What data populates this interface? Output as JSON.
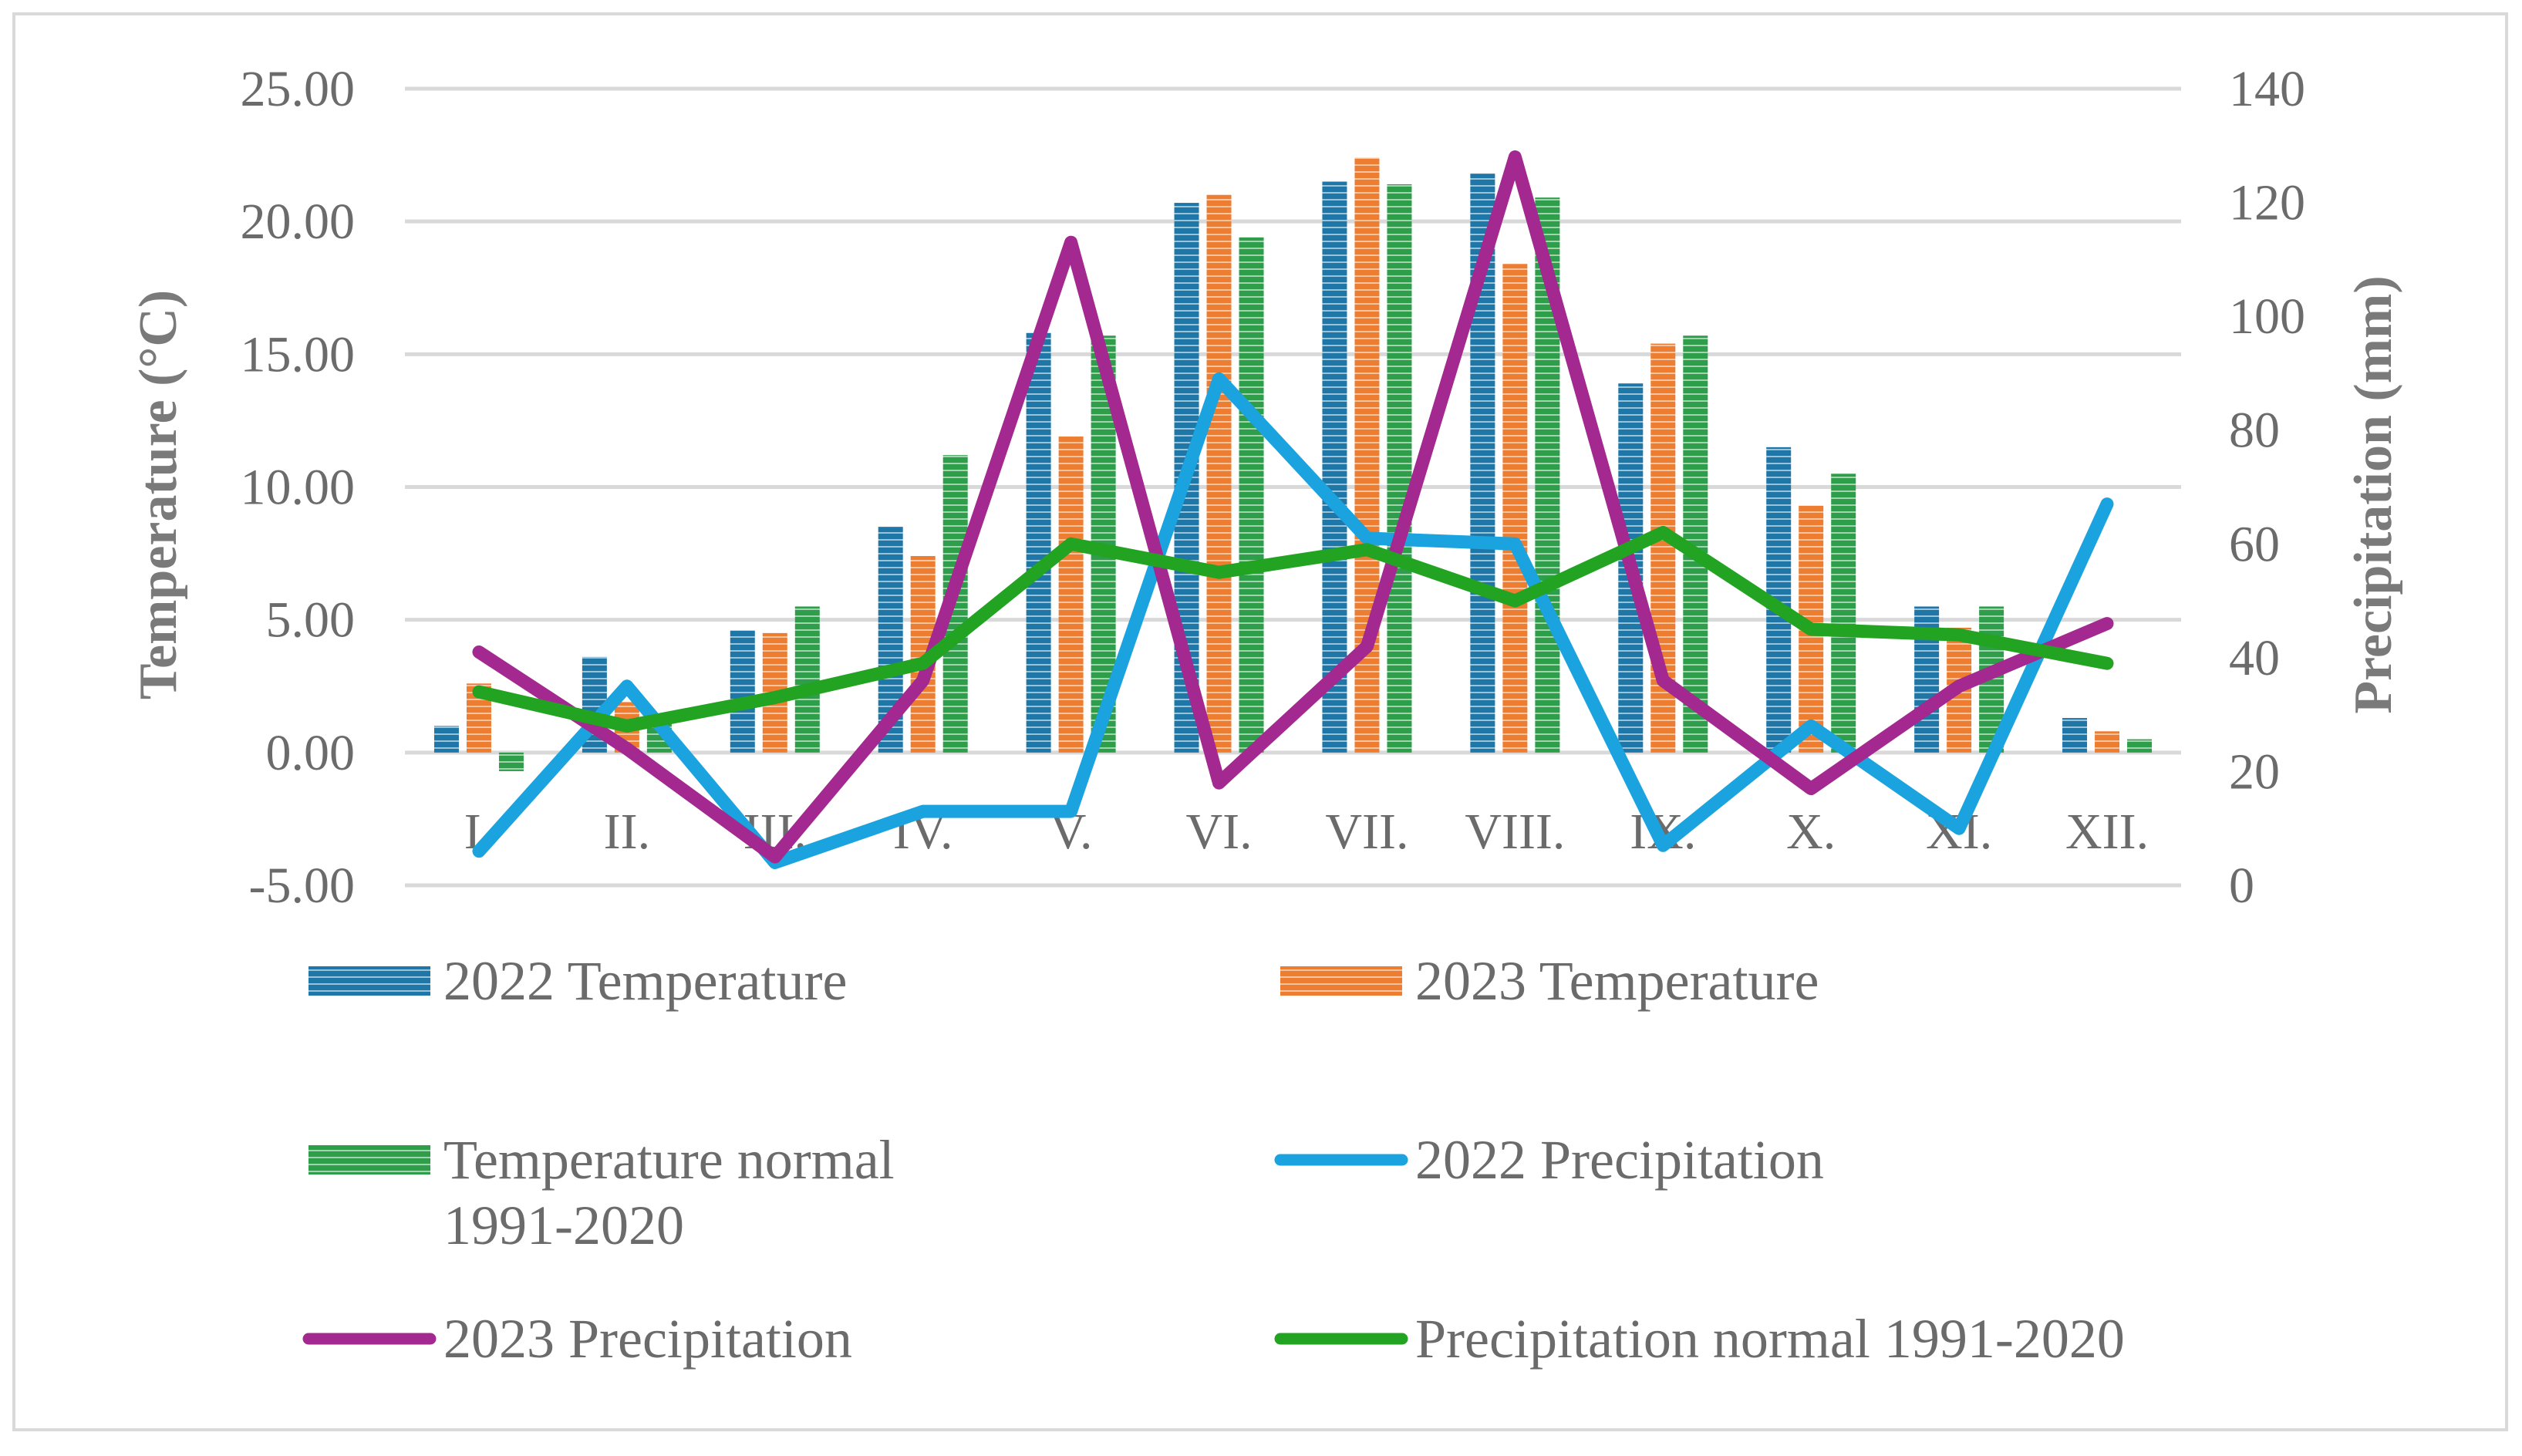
{
  "chart_data": {
    "type": "bar",
    "categories": [
      "I.",
      "II.",
      "III.",
      "IV.",
      "V.",
      "VI.",
      "VII.",
      "VIII.",
      "IX.",
      "X.",
      "XI.",
      "XII."
    ],
    "y_left": {
      "label": "Temperature (°C)",
      "lim": [
        -5,
        25
      ],
      "ticks": [
        -5,
        0,
        5,
        10,
        15,
        20,
        25
      ],
      "tick_labels": [
        "-5.00",
        "0.00",
        "5.00",
        "10.00",
        "15.00",
        "20.00",
        "25.00"
      ]
    },
    "y_right": {
      "label": "Precipitation (mm)",
      "lim": [
        0,
        140
      ],
      "ticks": [
        0,
        20,
        40,
        60,
        80,
        100,
        120,
        140
      ],
      "tick_labels": [
        "0",
        "20",
        "40",
        "60",
        "80",
        "100",
        "120",
        "140"
      ]
    },
    "bar_series": [
      {
        "name": "2022 Temperature",
        "color": "#1f77a8",
        "values": [
          1.0,
          3.6,
          4.6,
          8.5,
          15.8,
          20.7,
          21.5,
          21.8,
          13.9,
          11.5,
          5.5,
          1.3
        ]
      },
      {
        "name": "2023 Temperature",
        "color": "#ed7d31",
        "values": [
          2.6,
          1.9,
          4.5,
          7.4,
          11.9,
          21.0,
          22.4,
          18.4,
          15.4,
          9.3,
          4.7,
          0.8
        ]
      },
      {
        "name": "Temperature normal 1991-2020",
        "color": "#2e9e4a",
        "values": [
          -0.7,
          1.1,
          5.5,
          11.2,
          15.7,
          19.4,
          21.4,
          20.9,
          15.7,
          10.5,
          5.5,
          0.5
        ]
      }
    ],
    "line_series": [
      {
        "name": "2022 Precipitation",
        "color": "#1aa3de",
        "values": [
          6,
          35,
          4,
          13,
          13,
          89,
          61,
          60,
          7,
          28,
          10,
          67
        ]
      },
      {
        "name": "2023 Precipitation",
        "color": "#a3288f",
        "values": [
          41,
          24,
          5,
          36,
          113,
          18,
          42,
          128,
          36,
          17,
          35,
          46
        ]
      },
      {
        "name": "Precipitation normal 1991-2020",
        "color": "#22a322",
        "values": [
          34,
          28,
          33,
          39,
          60,
          55,
          59,
          50,
          62,
          45,
          44,
          39
        ]
      }
    ],
    "legend": {
      "placement": "bottom",
      "items": [
        {
          "label": "2022 Temperature",
          "kind": "bar",
          "series": 0
        },
        {
          "label": "2023 Temperature",
          "kind": "bar",
          "series": 1
        },
        {
          "label": "Temperature normal",
          "label2": "1991-2020",
          "kind": "bar",
          "series": 2
        },
        {
          "label": "2022 Precipitation",
          "kind": "line",
          "series": 0
        },
        {
          "label": "2023 Precipitation",
          "kind": "line",
          "series": 1
        },
        {
          "label": "Precipitation normal 1991-2020",
          "kind": "line",
          "series": 2
        }
      ]
    }
  }
}
